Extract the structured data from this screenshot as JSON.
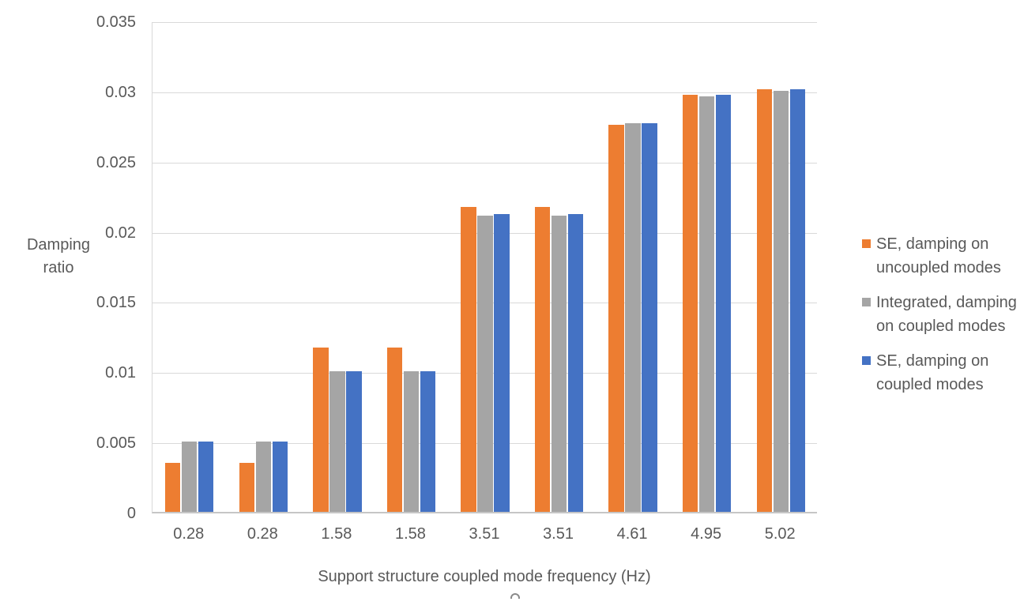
{
  "chart_data": {
    "type": "bar",
    "title": "",
    "xlabel": "Support structure coupled mode frequency (Hz)",
    "ylabel": "Damping ratio",
    "ylabel_lines": [
      "Damping",
      "ratio"
    ],
    "categories": [
      "0.28",
      "0.28",
      "1.58",
      "1.58",
      "3.51",
      "3.51",
      "4.61",
      "4.95",
      "5.02"
    ],
    "series": [
      {
        "name": "SE, damping on uncoupled modes",
        "legend_lines": [
          "SE, damping on",
          "uncoupled modes"
        ],
        "color": "#ED7D31",
        "values": [
          0.0035,
          0.0035,
          0.0117,
          0.0117,
          0.0217,
          0.0217,
          0.0276,
          0.0297,
          0.0301
        ]
      },
      {
        "name": "Integrated, damping on coupled modes",
        "legend_lines": [
          "Integrated, damping",
          "on coupled modes"
        ],
        "color": "#A5A5A5",
        "values": [
          0.005,
          0.005,
          0.01,
          0.01,
          0.0211,
          0.0211,
          0.0277,
          0.0296,
          0.03
        ]
      },
      {
        "name": "SE, damping on coupled modes",
        "legend_lines": [
          "SE, damping on",
          "coupled modes"
        ],
        "color": "#4472C4",
        "values": [
          0.005,
          0.005,
          0.01,
          0.01,
          0.0212,
          0.0212,
          0.0277,
          0.0297,
          0.0301
        ]
      }
    ],
    "ylim": [
      0,
      0.035
    ],
    "ytick_step": 0.005,
    "yticks": [
      {
        "value": 0,
        "label": "0"
      },
      {
        "value": 0.005,
        "label": "0.005"
      },
      {
        "value": 0.01,
        "label": "0.01"
      },
      {
        "value": 0.015,
        "label": "0.015"
      },
      {
        "value": 0.02,
        "label": "0.02"
      },
      {
        "value": 0.025,
        "label": "0.025"
      },
      {
        "value": 0.03,
        "label": "0.03"
      },
      {
        "value": 0.035,
        "label": "0.035"
      }
    ],
    "grid": true,
    "legend_position": "right",
    "colors": {
      "gridline": "#D9D9D9",
      "axis_line": "#C6C6C6",
      "text": "#595959"
    }
  }
}
